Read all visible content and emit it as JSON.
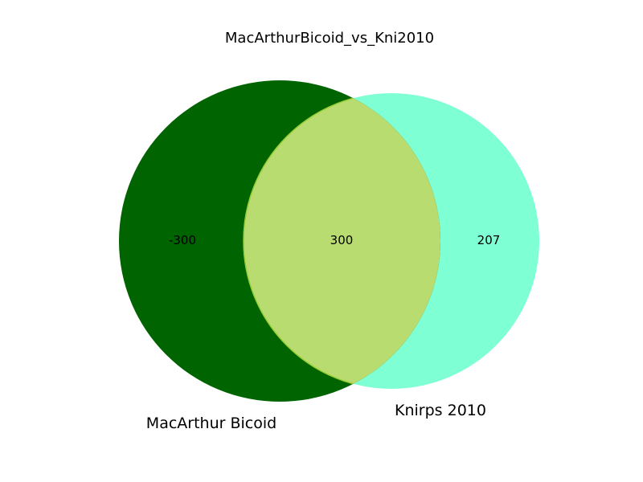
{
  "title": "MacArthurBicoid_vs_Kni2010",
  "sets": [
    {
      "name": "MacArthur Bicoid",
      "only_count": "-300",
      "color": "#006400"
    },
    {
      "name": "Knirps 2010",
      "only_count": "207",
      "color": "#7fffd4"
    }
  ],
  "intersection": {
    "count": "300",
    "color": "#b8dc70",
    "edge_color": "#9acd32"
  }
}
